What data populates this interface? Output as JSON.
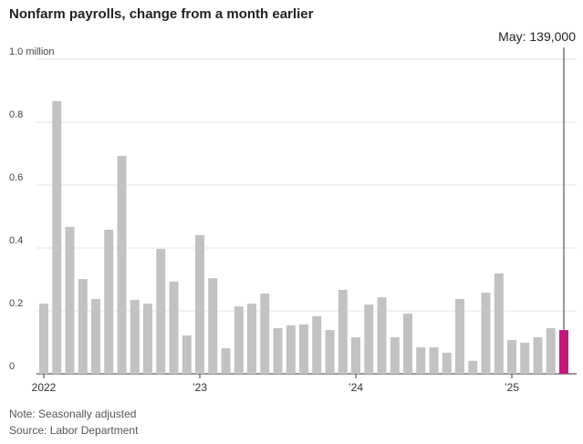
{
  "chart_data": {
    "type": "bar",
    "title": "Nonfarm payrolls, change from a month earlier",
    "annotation": "May: 139,000",
    "note": "Note: Seasonally adjusted",
    "source": "Source: Labor Department",
    "categories": [
      "2022",
      null,
      null,
      null,
      null,
      null,
      null,
      null,
      null,
      null,
      null,
      null,
      "’23",
      null,
      null,
      null,
      null,
      null,
      null,
      null,
      null,
      null,
      null,
      null,
      "’24",
      null,
      null,
      null,
      null,
      null,
      null,
      null,
      null,
      null,
      null,
      null,
      "’25",
      null,
      null,
      null,
      null
    ],
    "values": [
      0.223,
      0.867,
      0.467,
      0.301,
      0.238,
      0.458,
      0.693,
      0.235,
      0.223,
      0.397,
      0.293,
      0.122,
      0.441,
      0.304,
      0.081,
      0.214,
      0.223,
      0.255,
      0.145,
      0.154,
      0.157,
      0.183,
      0.139,
      0.267,
      0.116,
      0.22,
      0.243,
      0.116,
      0.191,
      0.084,
      0.084,
      0.067,
      0.238,
      0.041,
      0.258,
      0.319,
      0.107,
      0.099,
      0.116,
      0.145,
      0.139
    ],
    "colors": [
      "#c2c2c2",
      "#c2c2c2",
      "#c2c2c2",
      "#c2c2c2",
      "#c2c2c2",
      "#c2c2c2",
      "#c2c2c2",
      "#c2c2c2",
      "#c2c2c2",
      "#c2c2c2",
      "#c2c2c2",
      "#c2c2c2",
      "#c2c2c2",
      "#c2c2c2",
      "#c2c2c2",
      "#c2c2c2",
      "#c2c2c2",
      "#c2c2c2",
      "#c2c2c2",
      "#c2c2c2",
      "#c2c2c2",
      "#c2c2c2",
      "#c2c2c2",
      "#c2c2c2",
      "#c2c2c2",
      "#c2c2c2",
      "#c2c2c2",
      "#c2c2c2",
      "#c2c2c2",
      "#c2c2c2",
      "#c2c2c2",
      "#c2c2c2",
      "#c2c2c2",
      "#c2c2c2",
      "#c2c2c2",
      "#c2c2c2",
      "#c2c2c2",
      "#c2c2c2",
      "#c2c2c2",
      "#c2c2c2",
      "#c4197a"
    ],
    "ylim": [
      0,
      1.0
    ],
    "yticks": [
      0,
      0.2,
      0.4,
      0.6,
      0.8,
      {
        "value": 1.0,
        "label": "1.0 million"
      }
    ],
    "grid": true
  }
}
